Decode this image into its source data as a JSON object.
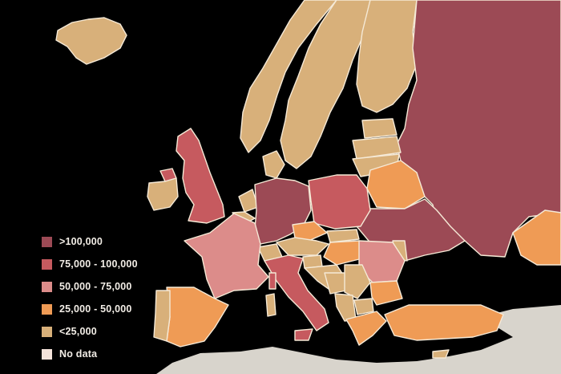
{
  "legend": {
    "items": [
      {
        "label": ">100,000",
        "color": "#9c4a55"
      },
      {
        "label": "75,000 - 100,000",
        "color": "#c65a5f"
      },
      {
        "label": "50,000 - 75,000",
        "color": "#dc8c8a"
      },
      {
        "label": "25,000 - 50,000",
        "color": "#ef9b55"
      },
      {
        "label": "<25,000",
        "color": "#d8b07a"
      },
      {
        "label": "No data",
        "color": "#f4e3da"
      }
    ]
  },
  "colors": {
    "background": "#000000",
    "border": "#f5e9d6",
    "sea_outside": "#d8d4cc"
  }
}
